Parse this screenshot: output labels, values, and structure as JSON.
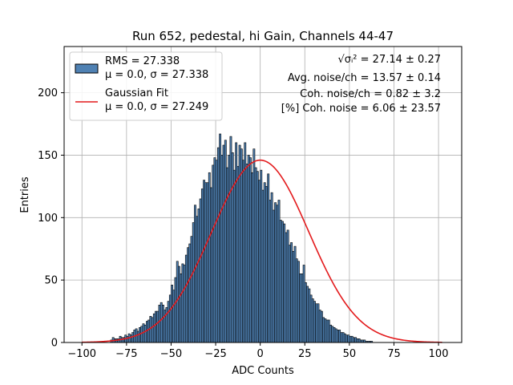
{
  "chart_data": {
    "type": "bar",
    "title": "Run 652, pedestal, hi Gain, Channels 44-47",
    "xlabel": "ADC Counts",
    "ylabel": "Entries",
    "xlim": [
      -110,
      113
    ],
    "ylim": [
      0,
      237
    ],
    "xticks": [
      -100,
      -75,
      -50,
      -25,
      0,
      25,
      50,
      75,
      100
    ],
    "yticks": [
      0,
      50,
      100,
      150,
      200
    ],
    "grid": true,
    "legend_position": "top-left",
    "colors": {
      "histogram": "#4f81b3",
      "edge": "#000000",
      "fit": "#e31a1c"
    },
    "histogram": {
      "name": "RMS = 27.338",
      "name_line2": "μ = 0.0, σ = 27.338",
      "bin_start": -100,
      "bin_width": 1,
      "counts": [
        0,
        0,
        0,
        0,
        0,
        0,
        0,
        0,
        0,
        0,
        0,
        0,
        0,
        0,
        0,
        0,
        2,
        4,
        3,
        3,
        3,
        5,
        4,
        4,
        6,
        5,
        7,
        6,
        8,
        10,
        11,
        9,
        12,
        13,
        15,
        14,
        17,
        18,
        21,
        20,
        23,
        25,
        25,
        30,
        32,
        30,
        26,
        28,
        33,
        38,
        46,
        42,
        52,
        65,
        61,
        55,
        63,
        62,
        70,
        76,
        79,
        85,
        96,
        110,
        101,
        107,
        115,
        123,
        130,
        128,
        128,
        136,
        124,
        142,
        148,
        146,
        156,
        167,
        150,
        158,
        162,
        140,
        150,
        165,
        152,
        138,
        160,
        141,
        158,
        155,
        146,
        160,
        143,
        150,
        148,
        136,
        155,
        140,
        137,
        130,
        138,
        122,
        128,
        125,
        135,
        114,
        120,
        106,
        112,
        110,
        114,
        98,
        97,
        95,
        88,
        90,
        78,
        80,
        73,
        77,
        67,
        65,
        55,
        55,
        62,
        48,
        45,
        43,
        38,
        35,
        33,
        31,
        31,
        26,
        25,
        20,
        19,
        18,
        18,
        14,
        13,
        12,
        11,
        10,
        10,
        8,
        8,
        7,
        6,
        6,
        5,
        5,
        4,
        4,
        3,
        3,
        2,
        2,
        2,
        1,
        1,
        1,
        1,
        0,
        0,
        0,
        0,
        0,
        0,
        0,
        0,
        0,
        0,
        0,
        0,
        0,
        0,
        0,
        0,
        0,
        0,
        0,
        0,
        0,
        0,
        0,
        0,
        0,
        0
      ]
    },
    "fit": {
      "name": "Gaussian Fit",
      "name_line2": "μ = 0.0, σ = 27.249",
      "type": "gaussian",
      "mu": 0.0,
      "sigma": 27.249,
      "amplitude": 146,
      "x_range": [
        -100,
        102
      ]
    },
    "annotations": [
      {
        "label": "√σᵢ²",
        "value": " = 27.14 ± 0.27"
      },
      {
        "label": "Avg. noise/ch",
        "value": " = 13.57 ± 0.14"
      },
      {
        "label": "Coh. noise/ch",
        "value": " = 0.82 ± 3.2"
      },
      {
        "label": "[%] Coh. noise",
        "value": " = 6.06 ± 23.57"
      }
    ]
  }
}
